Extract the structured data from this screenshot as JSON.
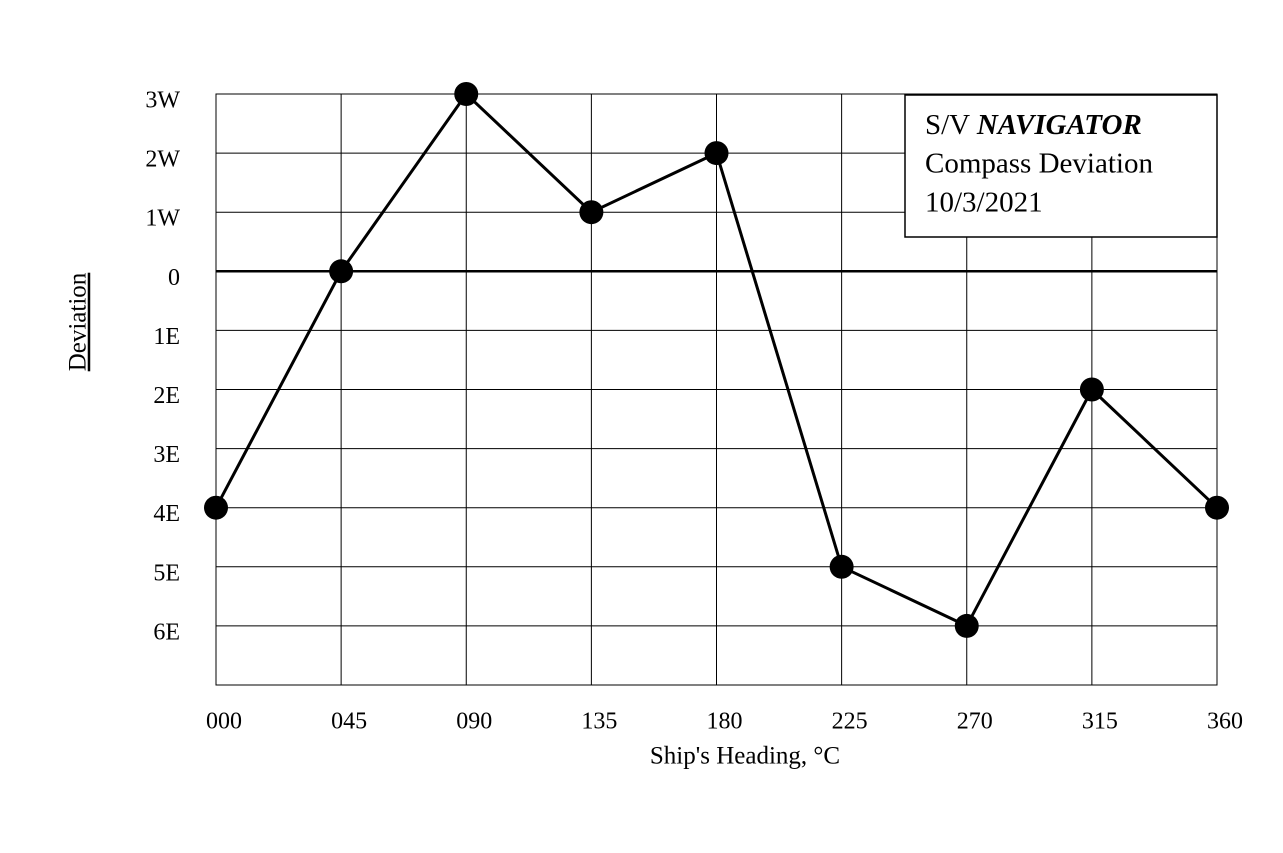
{
  "chart_data": {
    "type": "line",
    "title_lines": [
      "S/V",
      "NAVIGATOR",
      "Compass Deviation",
      "10/3/2021"
    ],
    "x_label": "Ship's Heading, °C",
    "y_label": "Deviation",
    "x": [
      0,
      45,
      90,
      135,
      180,
      225,
      270,
      315,
      360
    ],
    "series": [
      {
        "color": "#000000",
        "values": [
          -4,
          0,
          3,
          1,
          2,
          -5,
          -6,
          -2,
          -4
        ]
      }
    ],
    "xlim": [
      0,
      360
    ],
    "xticks": [
      {
        "value": 0,
        "label": "000"
      },
      {
        "value": 45,
        "label": "045"
      },
      {
        "value": 90,
        "label": "090"
      },
      135,
      180,
      225,
      270,
      315,
      360
    ],
    "ylim": [
      -7,
      3
    ],
    "yticks": [
      {
        "value": 3,
        "label": "3W"
      },
      {
        "value": 2,
        "label": "2W"
      },
      {
        "value": 1,
        "label": "1W"
      },
      0,
      {
        "value": -1,
        "label": "1E"
      },
      {
        "value": -2,
        "label": "2E"
      },
      {
        "value": -3,
        "label": "3E"
      },
      {
        "value": -4,
        "label": "4E"
      },
      {
        "value": -5,
        "label": "5E"
      },
      {
        "value": -6,
        "label": "6E"
      }
    ],
    "grid": true
  }
}
